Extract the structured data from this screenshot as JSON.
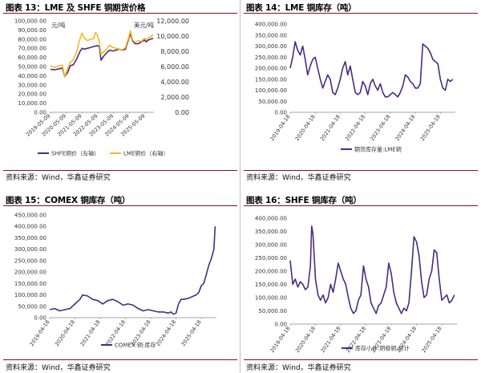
{
  "panels": [
    {
      "title": "图表 13：LME 及 SHFE 铜期货价格",
      "source": "资料来源：Wind，华鑫证券研究"
    },
    {
      "title": "图表 14：LME 铜库存（吨）",
      "source": "资料来源：Wind，华鑫证券研究"
    },
    {
      "title": "图表 15：COMEX 铜库存（吨）",
      "source": "资料来源：Wind，华鑫证券研究"
    },
    {
      "title": "图表 16：SHFE 铜库存（吨）",
      "source": "资料来源：Wind，华鑫证券研究"
    }
  ],
  "colors": {
    "purple": "#4b2b7f",
    "gold": "#f5b921",
    "title_rule": "#7f1416",
    "tick": "#555555"
  },
  "chart_data": [
    {
      "type": "line",
      "id": "c1",
      "left_unit": "元/吨",
      "right_unit": "美元/吨",
      "ylim": [
        0,
        100000
      ],
      "yticks": [
        0,
        10000,
        20000,
        30000,
        40000,
        50000,
        60000,
        70000,
        80000,
        90000,
        100000
      ],
      "ytick_labels": [
        "0.00",
        "10,000.00",
        "20,000.00",
        "30,000.00",
        "40,000.00",
        "50,000.00",
        "60,000.00",
        "70,000.00",
        "80,000.00",
        "90,000.00",
        "100,000.00"
      ],
      "y2lim": [
        0,
        12000
      ],
      "y2ticks": [
        0,
        2000,
        4000,
        6000,
        8000,
        10000,
        12000
      ],
      "y2tick_labels": [
        "0.00",
        "2,000.00",
        "4,000.00",
        "6,000.00",
        "8,000.00",
        "10,000.00",
        "12,000.00"
      ],
      "xlim": [
        2019.3,
        2025.9
      ],
      "xticks": [
        2019.35,
        2020.35,
        2021.35,
        2022.35,
        2023.35,
        2024.35,
        2025.35
      ],
      "xtick_labels": [
        "2019-05-09",
        "2020-05-09",
        "2021-05-09",
        "2022-05-09",
        "2023-05-09",
        "2024-05-09",
        "2025-05-09"
      ],
      "series": [
        {
          "name": "SHFE铜价（左轴）",
          "axis": "left",
          "x": [
            2019.35,
            2019.6,
            2019.9,
            2020.1,
            2020.25,
            2020.45,
            2020.6,
            2020.8,
            2021.0,
            2021.2,
            2021.35,
            2021.5,
            2021.7,
            2021.9,
            2022.1,
            2022.3,
            2022.45,
            2022.55,
            2022.7,
            2022.9,
            2023.1,
            2023.3,
            2023.5,
            2023.7,
            2023.9,
            2024.1,
            2024.3,
            2024.4,
            2024.55,
            2024.7,
            2024.9,
            2025.1,
            2025.3,
            2025.4,
            2025.55,
            2025.7,
            2025.85
          ],
          "y": [
            47000,
            46500,
            47500,
            48500,
            39000,
            44000,
            51000,
            52000,
            58000,
            66000,
            70000,
            69000,
            70000,
            71000,
            72000,
            73000,
            72000,
            57000,
            61000,
            65000,
            68000,
            67000,
            68000,
            69000,
            68000,
            69000,
            80000,
            86000,
            78000,
            75000,
            75000,
            77000,
            79000,
            77000,
            79000,
            80000,
            81000
          ]
        },
        {
          "name": "LME铜价（右轴）",
          "axis": "right",
          "x": [
            2019.35,
            2019.6,
            2019.9,
            2020.1,
            2020.25,
            2020.45,
            2020.6,
            2020.8,
            2021.0,
            2021.2,
            2021.35,
            2021.5,
            2021.7,
            2021.9,
            2022.1,
            2022.2,
            2022.3,
            2022.45,
            2022.55,
            2022.7,
            2022.9,
            2023.1,
            2023.3,
            2023.5,
            2023.7,
            2023.9,
            2024.1,
            2024.3,
            2024.4,
            2024.55,
            2024.7,
            2024.9,
            2025.1,
            2025.3,
            2025.4,
            2025.55,
            2025.7,
            2025.85
          ],
          "y": [
            6100,
            5900,
            6100,
            6200,
            4700,
            5800,
            6600,
            6900,
            7900,
            9500,
            10400,
            9700,
            9400,
            9600,
            9700,
            10500,
            10200,
            9200,
            7600,
            7900,
            8300,
            8800,
            8500,
            8400,
            8300,
            8200,
            8500,
            9800,
            10700,
            9500,
            9200,
            9400,
            9300,
            9700,
            9500,
            9800,
            9900,
            10200
          ]
        }
      ]
    },
    {
      "type": "line",
      "id": "c2",
      "ylim": [
        0,
        400000
      ],
      "yticks": [
        0,
        50000,
        100000,
        150000,
        200000,
        250000,
        300000,
        350000,
        400000
      ],
      "ytick_labels": [
        "0.00",
        "50,000.00",
        "100,000.00",
        "150,000.00",
        "200,000.00",
        "250,000.00",
        "300,000.00",
        "350,000.00",
        "400,000.00"
      ],
      "xlim": [
        2019.3,
        2025.9
      ],
      "xticks": [
        2019.3,
        2020.3,
        2021.3,
        2022.3,
        2023.3,
        2024.3,
        2025.3
      ],
      "xtick_labels": [
        "2019-04-18",
        "2020-04-18",
        "2021-04-18",
        "2022-04-18",
        "2023-04-18",
        "2024-04-18",
        "2025-04-18"
      ],
      "series": [
        {
          "name": "期货库存量:LME铜",
          "x": [
            2019.3,
            2019.4,
            2019.5,
            2019.6,
            2019.7,
            2019.8,
            2019.9,
            2020.0,
            2020.1,
            2020.2,
            2020.3,
            2020.4,
            2020.5,
            2020.6,
            2020.7,
            2020.8,
            2020.9,
            2021.0,
            2021.1,
            2021.2,
            2021.3,
            2021.4,
            2021.5,
            2021.6,
            2021.7,
            2021.8,
            2021.9,
            2022.0,
            2022.1,
            2022.2,
            2022.3,
            2022.4,
            2022.5,
            2022.6,
            2022.7,
            2022.8,
            2022.9,
            2023.0,
            2023.1,
            2023.2,
            2023.3,
            2023.4,
            2023.5,
            2023.6,
            2023.7,
            2023.8,
            2023.9,
            2024.0,
            2024.1,
            2024.2,
            2024.3,
            2024.4,
            2024.5,
            2024.6,
            2024.7,
            2024.8,
            2024.9,
            2025.0,
            2025.1,
            2025.2,
            2025.3,
            2025.4,
            2025.5,
            2025.6,
            2025.7,
            2025.8
          ],
          "y": [
            200000,
            250000,
            320000,
            280000,
            260000,
            300000,
            240000,
            170000,
            210000,
            240000,
            250000,
            200000,
            150000,
            110000,
            140000,
            170000,
            150000,
            90000,
            80000,
            110000,
            150000,
            200000,
            230000,
            170000,
            210000,
            150000,
            90000,
            80000,
            90000,
            140000,
            120000,
            80000,
            130000,
            150000,
            120000,
            100000,
            130000,
            90000,
            70000,
            70000,
            80000,
            90000,
            80000,
            70000,
            90000,
            120000,
            170000,
            160000,
            140000,
            130000,
            110000,
            110000,
            130000,
            310000,
            300000,
            290000,
            270000,
            240000,
            230000,
            220000,
            150000,
            110000,
            100000,
            150000,
            140000,
            150000
          ]
        }
      ]
    },
    {
      "type": "line",
      "id": "c3",
      "ylim": [
        0,
        450000
      ],
      "yticks": [
        0,
        50000,
        100000,
        150000,
        200000,
        250000,
        300000,
        350000,
        400000,
        450000
      ],
      "ytick_labels": [
        "0.00",
        "50,000.00",
        "100,000.00",
        "150,000.00",
        "200,000.00",
        "250,000.00",
        "300,000.00",
        "350,000.00",
        "400,000.00",
        "450,000.00"
      ],
      "xlim": [
        2019.3,
        2025.9
      ],
      "xticks": [
        2019.3,
        2020.3,
        2021.3,
        2022.3,
        2023.3,
        2024.3,
        2025.3
      ],
      "xtick_labels": [
        "2019-04-18",
        "2020-04-18",
        "2021-04-18",
        "2022-04-18",
        "2023-04-18",
        "2024-04-18",
        "2025-04-18"
      ],
      "series": [
        {
          "name": "COMEX:铜:库存",
          "x": [
            2019.3,
            2019.5,
            2019.7,
            2019.9,
            2020.1,
            2020.3,
            2020.5,
            2020.6,
            2020.8,
            2021.0,
            2021.2,
            2021.4,
            2021.6,
            2021.8,
            2022.0,
            2022.2,
            2022.4,
            2022.6,
            2022.8,
            2023.0,
            2023.2,
            2023.4,
            2023.6,
            2023.8,
            2024.0,
            2024.1,
            2024.2,
            2024.3,
            2024.4,
            2024.5,
            2024.6,
            2024.8,
            2025.0,
            2025.1,
            2025.2,
            2025.3,
            2025.4,
            2025.5,
            2025.6,
            2025.7,
            2025.8,
            2025.85
          ],
          "y": [
            35000,
            40000,
            30000,
            35000,
            40000,
            60000,
            80000,
            100000,
            95000,
            80000,
            75000,
            60000,
            75000,
            80000,
            70000,
            55000,
            60000,
            55000,
            40000,
            30000,
            35000,
            30000,
            25000,
            25000,
            20000,
            25000,
            15000,
            20000,
            60000,
            80000,
            80000,
            85000,
            95000,
            100000,
            110000,
            140000,
            150000,
            190000,
            230000,
            260000,
            300000,
            400000
          ]
        }
      ]
    },
    {
      "type": "line",
      "id": "c4",
      "ylim": [
        0,
        400000
      ],
      "yticks": [
        0,
        50000,
        100000,
        150000,
        200000,
        250000,
        300000,
        350000,
        400000
      ],
      "ytick_labels": [
        "0.00",
        "50,000.00",
        "100,000.00",
        "150,000.00",
        "200,000.00",
        "250,000.00",
        "300,000.00",
        "350,000.00",
        "400,000.00"
      ],
      "xlim": [
        2019.3,
        2025.9
      ],
      "xticks": [
        2019.3,
        2020.3,
        2021.3,
        2022.3,
        2023.3,
        2024.3,
        2025.3
      ],
      "xtick_labels": [
        "2019-04-18",
        "2020-04-18",
        "2021-04-18",
        "2022-04-18",
        "2023-04-18",
        "2024-04-18",
        "2025-04-18"
      ],
      "series": [
        {
          "name": "库存小计:阴极铜:总计",
          "x": [
            2019.3,
            2019.4,
            2019.5,
            2019.6,
            2019.7,
            2019.8,
            2019.9,
            2020.0,
            2020.1,
            2020.15,
            2020.2,
            2020.3,
            2020.4,
            2020.5,
            2020.6,
            2020.7,
            2020.8,
            2020.9,
            2021.0,
            2021.1,
            2021.2,
            2021.3,
            2021.4,
            2021.5,
            2021.6,
            2021.7,
            2021.8,
            2021.9,
            2022.0,
            2022.1,
            2022.2,
            2022.3,
            2022.4,
            2022.5,
            2022.6,
            2022.7,
            2022.8,
            2022.9,
            2023.0,
            2023.1,
            2023.2,
            2023.3,
            2023.4,
            2023.5,
            2023.6,
            2023.7,
            2023.8,
            2023.9,
            2024.0,
            2024.1,
            2024.2,
            2024.3,
            2024.4,
            2024.5,
            2024.6,
            2024.7,
            2024.8,
            2024.9,
            2025.0,
            2025.1,
            2025.2,
            2025.3,
            2025.4,
            2025.5,
            2025.6,
            2025.7,
            2025.8
          ],
          "y": [
            240000,
            150000,
            170000,
            140000,
            160000,
            150000,
            130000,
            140000,
            220000,
            370000,
            340000,
            170000,
            110000,
            90000,
            110000,
            80000,
            100000,
            150000,
            120000,
            170000,
            230000,
            200000,
            170000,
            150000,
            100000,
            60000,
            40000,
            50000,
            90000,
            110000,
            220000,
            170000,
            140000,
            80000,
            60000,
            40000,
            70000,
            80000,
            110000,
            140000,
            230000,
            190000,
            120000,
            80000,
            60000,
            40000,
            60000,
            50000,
            80000,
            200000,
            330000,
            310000,
            260000,
            160000,
            100000,
            110000,
            170000,
            200000,
            280000,
            270000,
            170000,
            90000,
            100000,
            110000,
            80000,
            90000,
            110000
          ]
        }
      ]
    }
  ]
}
